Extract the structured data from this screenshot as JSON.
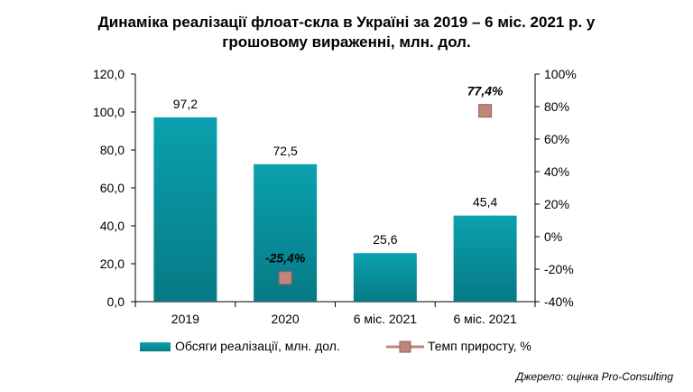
{
  "title_line1": "Динаміка реалізації флоат-скла в Україні за 2019 – 6 міс. 2021 р. у",
  "title_line2": "грошовому вираженні, млн. дол.",
  "source": "Джерело: оцінка Pro-Consulting",
  "colors": {
    "bar": "#0aa1ae",
    "bar_dark": "#067a85",
    "marker": "#c0857b",
    "marker_dark": "#9a5f56"
  },
  "chart_data": {
    "type": "bar",
    "categories": [
      "2019",
      "2020",
      "6 міс. 2021",
      "6 міс. 2021"
    ],
    "series": [
      {
        "name": "Обсяги реалізації,  млн. дол.",
        "type": "bar",
        "axis": "left",
        "values": [
          97.2,
          72.5,
          25.6,
          45.4
        ],
        "labels": [
          "97,2",
          "72,5",
          "25,6",
          "45,4"
        ]
      },
      {
        "name": "Темп приросту, %",
        "type": "scatter",
        "axis": "right",
        "values": [
          null,
          -25.4,
          null,
          77.4
        ],
        "labels": [
          "",
          "-25,4%",
          "",
          "77,4%"
        ]
      }
    ],
    "y_left": {
      "min": 0,
      "max": 120,
      "step": 20,
      "ticks": [
        "0,0",
        "20,0",
        "40,0",
        "60,0",
        "80,0",
        "100,0",
        "120,0"
      ]
    },
    "y_right": {
      "min": -40,
      "max": 100,
      "step": 20,
      "ticks": [
        "-40%",
        "-20%",
        "0%",
        "20%",
        "40%",
        "60%",
        "80%",
        "100%"
      ]
    },
    "legend_position": "bottom",
    "grid": false
  }
}
